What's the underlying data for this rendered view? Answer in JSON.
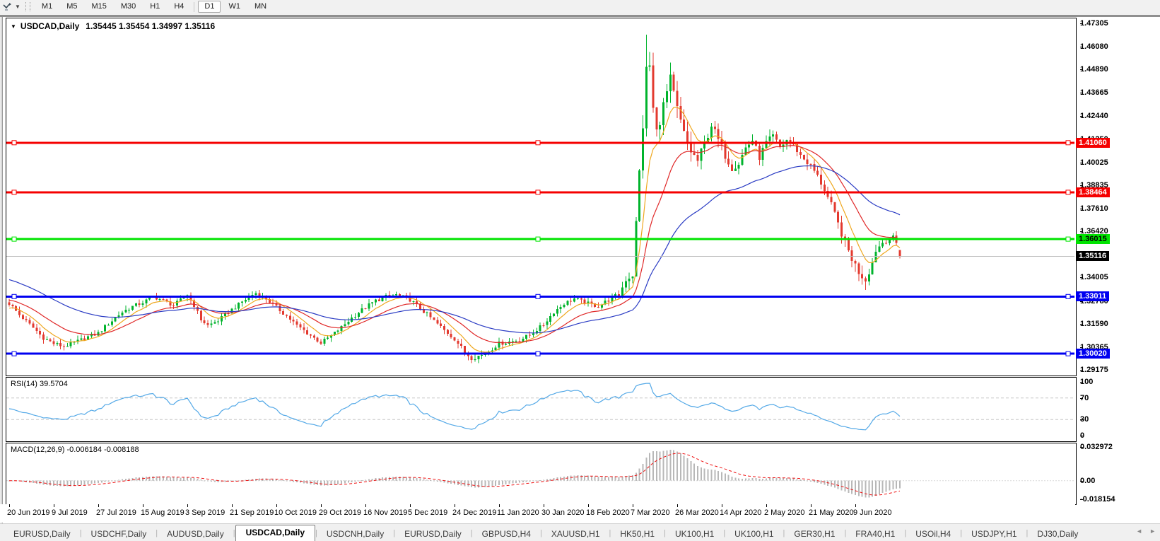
{
  "toolbar": {
    "icon": "timeframes-toolbar-icon",
    "timeframes": [
      {
        "label": "M1",
        "active": false
      },
      {
        "label": "M5",
        "active": false
      },
      {
        "label": "M15",
        "active": false
      },
      {
        "label": "M30",
        "active": false
      },
      {
        "label": "H1",
        "active": false
      },
      {
        "label": "H4",
        "active": false
      },
      {
        "label": "D1",
        "active": true
      },
      {
        "label": "W1",
        "active": false
      },
      {
        "label": "MN",
        "active": false
      }
    ]
  },
  "chart": {
    "title": "USDCAD,Daily",
    "quote": "1.35445 1.35454 1.34997 1.35116",
    "price_axis_ticks": [
      "1.47305",
      "1.46080",
      "1.44890",
      "1.43665",
      "1.42440",
      "1.41250",
      "1.40025",
      "1.38835",
      "1.37610",
      "1.36420",
      "1.35195",
      "1.34005",
      "1.32780",
      "1.31590",
      "1.30365",
      "1.29175"
    ],
    "h_lines": [
      {
        "price": 1.4106,
        "label": "1.41060",
        "color": "#f50000",
        "label_bg": "#f50000",
        "label_fg": "#ffffff"
      },
      {
        "price": 1.38464,
        "label": "1.38464",
        "color": "#f50000",
        "label_bg": "#f50000",
        "label_fg": "#ffffff"
      },
      {
        "price": 1.36015,
        "label": "1.36015",
        "color": "#00e400",
        "label_bg": "#00e400",
        "label_fg": "#000000"
      },
      {
        "price": 1.33011,
        "label": "1.33011",
        "color": "#0000f0",
        "label_bg": "#0000f0",
        "label_fg": "#ffffff"
      },
      {
        "price": 1.3002,
        "label": "1.30020",
        "color": "#0000f0",
        "label_bg": "#0000f0",
        "label_fg": "#ffffff"
      }
    ],
    "current_price": {
      "price": 1.35116,
      "label": "1.35116",
      "line_color": "#bcbcbc",
      "label_bg": "#000000",
      "label_fg": "#ffffff"
    }
  },
  "chart_data": {
    "type": "candlestick",
    "symbol": "USDCAD",
    "timeframe": "Daily",
    "bars": 261,
    "price_range": [
      1.29175,
      1.47305
    ],
    "up_color": "#00b32c",
    "down_color": "#e33a2f",
    "close_waypoints": [
      [
        0,
        1.3265
      ],
      [
        3,
        1.3205
      ],
      [
        6,
        1.3155
      ],
      [
        10,
        1.3085
      ],
      [
        13,
        1.3055
      ],
      [
        16,
        1.304
      ],
      [
        19,
        1.306
      ],
      [
        23,
        1.309
      ],
      [
        26,
        1.311
      ],
      [
        29,
        1.316
      ],
      [
        33,
        1.322
      ],
      [
        36,
        1.325
      ],
      [
        39,
        1.327
      ],
      [
        42,
        1.33
      ],
      [
        45,
        1.328
      ],
      [
        48,
        1.3255
      ],
      [
        52,
        1.331
      ],
      [
        54,
        1.3255
      ],
      [
        56,
        1.318
      ],
      [
        58,
        1.315
      ],
      [
        61,
        1.3175
      ],
      [
        64,
        1.322
      ],
      [
        67,
        1.326
      ],
      [
        70,
        1.33
      ],
      [
        72,
        1.332
      ],
      [
        75,
        1.329
      ],
      [
        78,
        1.3245
      ],
      [
        81,
        1.32
      ],
      [
        84,
        1.315
      ],
      [
        87,
        1.311
      ],
      [
        91,
        1.306
      ],
      [
        94,
        1.3095
      ],
      [
        97,
        1.314
      ],
      [
        100,
        1.319
      ],
      [
        104,
        1.3245
      ],
      [
        107,
        1.328
      ],
      [
        110,
        1.33
      ],
      [
        113,
        1.331
      ],
      [
        117,
        1.3285
      ],
      [
        120,
        1.324
      ],
      [
        123,
        1.319
      ],
      [
        126,
        1.314
      ],
      [
        130,
        1.308
      ],
      [
        133,
        1.301
      ],
      [
        135,
        1.298
      ],
      [
        138,
        1.2995
      ],
      [
        141,
        1.303
      ],
      [
        143,
        1.3055
      ],
      [
        146,
        1.3065
      ],
      [
        149,
        1.3075
      ],
      [
        152,
        1.31
      ],
      [
        156,
        1.3155
      ],
      [
        159,
        1.322
      ],
      [
        162,
        1.3265
      ],
      [
        165,
        1.329
      ],
      [
        169,
        1.3265
      ],
      [
        172,
        1.325
      ],
      [
        175,
        1.3285
      ],
      [
        178,
        1.331
      ],
      [
        180,
        1.339
      ],
      [
        182,
        1.342
      ],
      [
        183,
        1.368
      ],
      [
        184,
        1.395
      ],
      [
        185,
        1.42
      ],
      [
        186,
        1.448
      ],
      [
        187,
        1.451
      ],
      [
        188,
        1.428
      ],
      [
        189,
        1.416
      ],
      [
        191,
        1.43
      ],
      [
        193,
        1.4435
      ],
      [
        195,
        1.428
      ],
      [
        197,
        1.415
      ],
      [
        199,
        1.406
      ],
      [
        201,
        1.401
      ],
      [
        203,
        1.41
      ],
      [
        205,
        1.42
      ],
      [
        207,
        1.412
      ],
      [
        209,
        1.404
      ],
      [
        211,
        1.3975
      ],
      [
        213,
        1.4
      ],
      [
        215,
        1.408
      ],
      [
        217,
        1.412
      ],
      [
        219,
        1.403
      ],
      [
        221,
        1.4105
      ],
      [
        223,
        1.414
      ],
      [
        225,
        1.408
      ],
      [
        227,
        1.412
      ],
      [
        229,
        1.409
      ],
      [
        231,
        1.404
      ],
      [
        234,
        1.3985
      ],
      [
        236,
        1.393
      ],
      [
        238,
        1.386
      ],
      [
        240,
        1.378
      ],
      [
        242,
        1.368
      ],
      [
        244,
        1.358
      ],
      [
        246,
        1.35
      ],
      [
        248,
        1.343
      ],
      [
        250,
        1.339
      ],
      [
        252,
        1.348
      ],
      [
        253,
        1.3545
      ],
      [
        255,
        1.3585
      ],
      [
        257,
        1.36
      ],
      [
        258,
        1.361
      ],
      [
        259,
        1.358
      ],
      [
        260,
        1.3512
      ]
    ],
    "volatility_waypoints": [
      [
        0,
        0.0042
      ],
      [
        90,
        0.004
      ],
      [
        130,
        0.0048
      ],
      [
        170,
        0.004
      ],
      [
        180,
        0.006
      ],
      [
        183,
        0.014
      ],
      [
        187,
        0.016
      ],
      [
        191,
        0.013
      ],
      [
        195,
        0.012
      ],
      [
        200,
        0.01
      ],
      [
        210,
        0.008
      ],
      [
        220,
        0.007
      ],
      [
        230,
        0.006
      ],
      [
        240,
        0.0065
      ],
      [
        246,
        0.008
      ],
      [
        250,
        0.0085
      ],
      [
        253,
        0.007
      ],
      [
        257,
        0.005
      ],
      [
        260,
        0.004
      ]
    ],
    "extreme_wicks": [
      {
        "i": 186,
        "high": 1.4672
      },
      {
        "i": 135,
        "low": 1.2952
      },
      {
        "i": 250,
        "low": 1.3335
      }
    ],
    "last_bar_ohlc": {
      "open": 1.35445,
      "high": 1.35454,
      "low": 1.34997,
      "close": 1.35116
    },
    "moving_averages": [
      {
        "period": 8,
        "type": "ema",
        "color": "#efa820",
        "seed": 1.3235
      },
      {
        "period": 20,
        "type": "ema",
        "color": "#e02828",
        "seed": 1.3285
      },
      {
        "period": 50,
        "type": "ema",
        "color": "#2b3cc4",
        "seed": 1.3395
      }
    ],
    "date_labels": [
      "20 Jun 2019",
      "9 Jul 2019",
      "27 Jul 2019",
      "15 Aug 2019",
      "3 Sep 2019",
      "21 Sep 2019",
      "10 Oct 2019",
      "29 Oct 2019",
      "16 Nov 2019",
      "5 Dec 2019",
      "24 Dec 2019",
      "11 Jan 2020",
      "30 Jan 2020",
      "18 Feb 2020",
      "7 Mar 2020",
      "26 Mar 2020",
      "14 Apr 2020",
      "2 May 2020",
      "21 May 2020",
      "9 Jun 2020"
    ],
    "rsi": {
      "label": "RSI(14) 39.5704",
      "period": 14,
      "last_value": 39.5704,
      "levels": [
        70,
        30
      ],
      "scale": [
        0,
        100
      ],
      "axis_labels": [
        "100",
        "70",
        "30",
        "0"
      ],
      "color": "#54a9e7"
    },
    "macd": {
      "label": "MACD(12,26,9) -0.006184 -0.008188",
      "fast": 12,
      "slow": 26,
      "signal": 9,
      "macd_value": -0.006184,
      "signal_value": -0.008188,
      "scale_max": 0.032972,
      "scale_min": -0.018154,
      "axis_labels": [
        "0.032972",
        "0.00",
        "-0.018154"
      ],
      "hist_color": "#b8b8b8",
      "signal_color": "#ee1111"
    }
  },
  "tabs": {
    "items": [
      {
        "label": "EURUSD,Daily",
        "active": false
      },
      {
        "label": "USDCHF,Daily",
        "active": false
      },
      {
        "label": "AUDUSD,Daily",
        "active": false
      },
      {
        "label": "USDCAD,Daily",
        "active": true
      },
      {
        "label": "USDCNH,Daily",
        "active": false
      },
      {
        "label": "EURUSD,Daily",
        "active": false
      },
      {
        "label": "GBPUSD,H4",
        "active": false
      },
      {
        "label": "XAUUSD,H1",
        "active": false
      },
      {
        "label": "HK50,H1",
        "active": false
      },
      {
        "label": "UK100,H1",
        "active": false
      },
      {
        "label": "UK100,H1",
        "active": false
      },
      {
        "label": "GER30,H1",
        "active": false
      },
      {
        "label": "FRA40,H1",
        "active": false
      },
      {
        "label": "USOil,H4",
        "active": false
      },
      {
        "label": "USDJPY,H1",
        "active": false
      },
      {
        "label": "DJ30,Daily",
        "active": false
      }
    ],
    "scroll_left": "◄",
    "scroll_right": "►"
  }
}
